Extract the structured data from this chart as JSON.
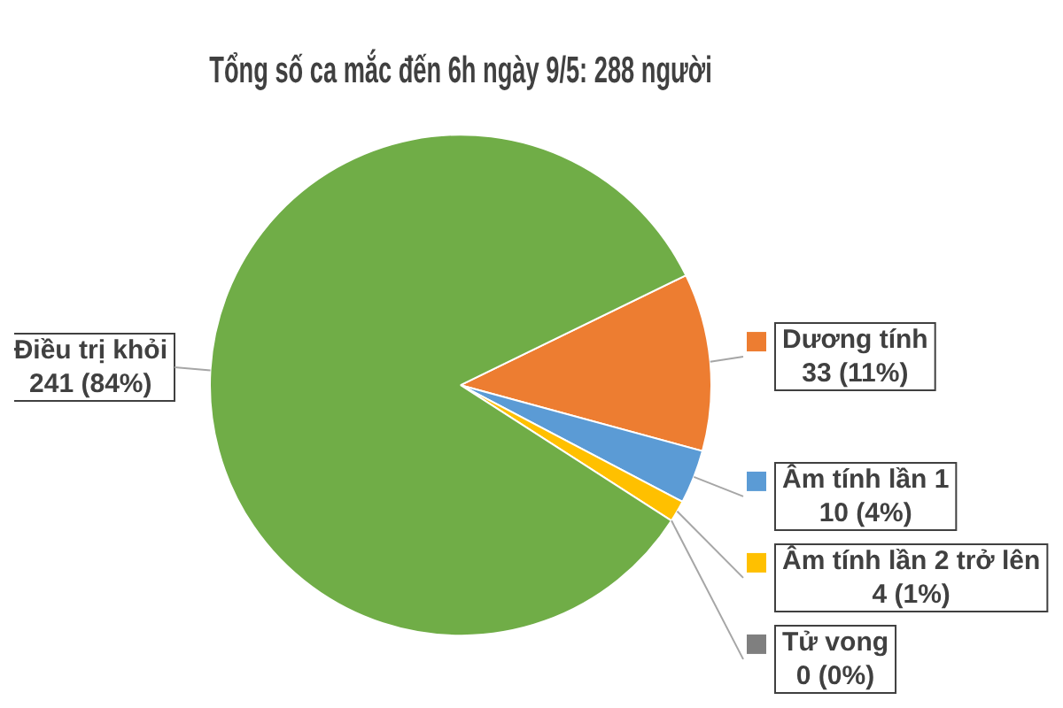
{
  "chart_data": {
    "type": "pie",
    "title": "Tổng số ca mắc đến 6h ngày 9/5: 288 người",
    "categories": [
      "Dương tính",
      "Âm tính lần 1",
      "Âm tính lần 2 trở lên",
      "Tử vong",
      "Điều trị khỏi"
    ],
    "values": [
      33,
      10,
      4,
      0,
      241
    ],
    "colors": [
      "#ed7d31",
      "#5b9bd5",
      "#ffc000",
      "#7f7f7f",
      "#70ad47"
    ],
    "legend": "right",
    "value_labels": [
      "33 (11%)",
      "10 (4%)",
      "4 (1%)",
      "0 (0%)",
      "241 (84%)"
    ]
  }
}
